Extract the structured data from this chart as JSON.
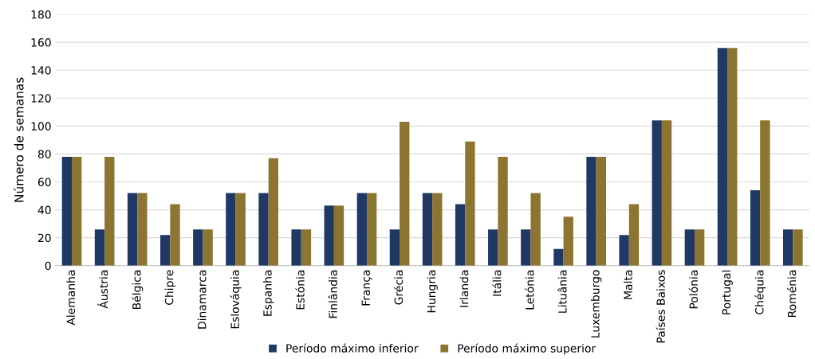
{
  "chart_data": {
    "type": "bar",
    "ylabel": "Número de semanas",
    "categories": [
      "Alemanha",
      "Áustria",
      "Bélgica",
      "Chipre",
      "Dinamarca",
      "Eslováquia",
      "Espanha",
      "Estónia",
      "Finlândia",
      "França",
      "Grécia",
      "Hungria",
      "Irlanda",
      "Itália",
      "Letónia",
      "Lituânia",
      "Luxemburgo",
      "Malta",
      "Países Baixos",
      "Polónia",
      "Portugal",
      "Chéquia",
      "Roménia"
    ],
    "series": [
      {
        "name": "Período máximo inferior",
        "color": "#1f3864",
        "values": [
          78,
          26,
          52,
          22,
          26,
          52,
          52,
          26,
          43,
          52,
          26,
          52,
          44,
          26,
          26,
          12,
          78,
          22,
          104,
          26,
          156,
          54,
          26
        ]
      },
      {
        "name": "Período máximo superior",
        "color": "#8c7431",
        "values": [
          78,
          78,
          52,
          44,
          26,
          52,
          77,
          26,
          43,
          52,
          103,
          52,
          89,
          78,
          52,
          35,
          78,
          44,
          104,
          26,
          156,
          104,
          26
        ]
      }
    ],
    "ylim": [
      0,
      180
    ],
    "yticks": [
      0,
      20,
      40,
      60,
      80,
      100,
      120,
      140,
      160,
      180
    ],
    "grid": "y",
    "legend": "bottom"
  }
}
